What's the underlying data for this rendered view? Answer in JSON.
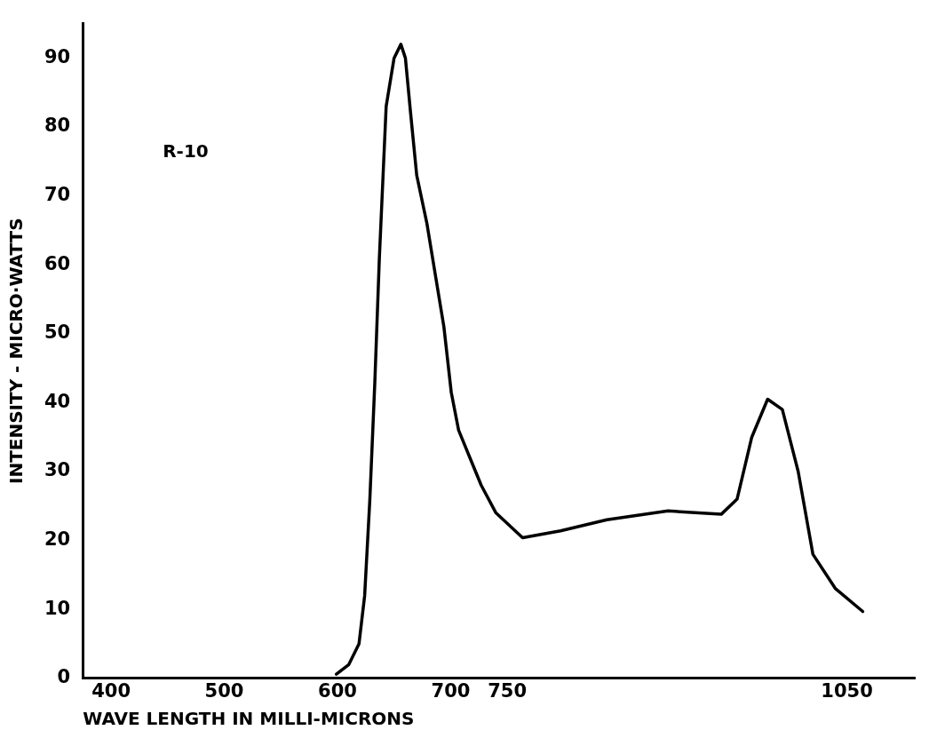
{
  "chart_data": {
    "type": "line",
    "xlabel": "WAVE LENGTH IN MILLI-MICRONS",
    "ylabel": "INTENSITY - MICRO·WATTS",
    "annotations": [
      "R-10"
    ],
    "x": [
      599,
      610,
      619,
      624,
      628.6,
      633,
      637,
      643,
      650,
      656,
      660,
      664.6,
      670,
      679,
      687,
      694,
      700.5,
      707,
      717,
      727,
      740,
      763.5,
      797,
      838,
      892,
      919,
      939,
      953,
      966,
      980,
      993,
      1007,
      1020,
      1040,
      1064
    ],
    "series": [
      {
        "color": "#000000",
        "values": [
          0.6,
          2,
          5,
          12,
          26,
          43,
          61,
          83,
          90,
          92,
          90,
          82,
          73,
          66,
          58,
          51,
          41.5,
          36,
          32,
          28,
          24,
          20.4,
          21.4,
          23,
          24.3,
          24,
          23.8,
          26,
          35,
          40.5,
          39,
          30,
          18,
          13,
          9.7
        ]
      }
    ],
    "xlim": [
      375,
      1110
    ],
    "xticks": [
      400,
      500,
      600,
      700,
      750,
      1050
    ],
    "ylim": [
      0,
      95
    ],
    "yticks": [
      0,
      10,
      20,
      30,
      40,
      50,
      60,
      70,
      80,
      90
    ],
    "grid": false,
    "legend": false,
    "marker": "none",
    "line_style": "solid"
  }
}
